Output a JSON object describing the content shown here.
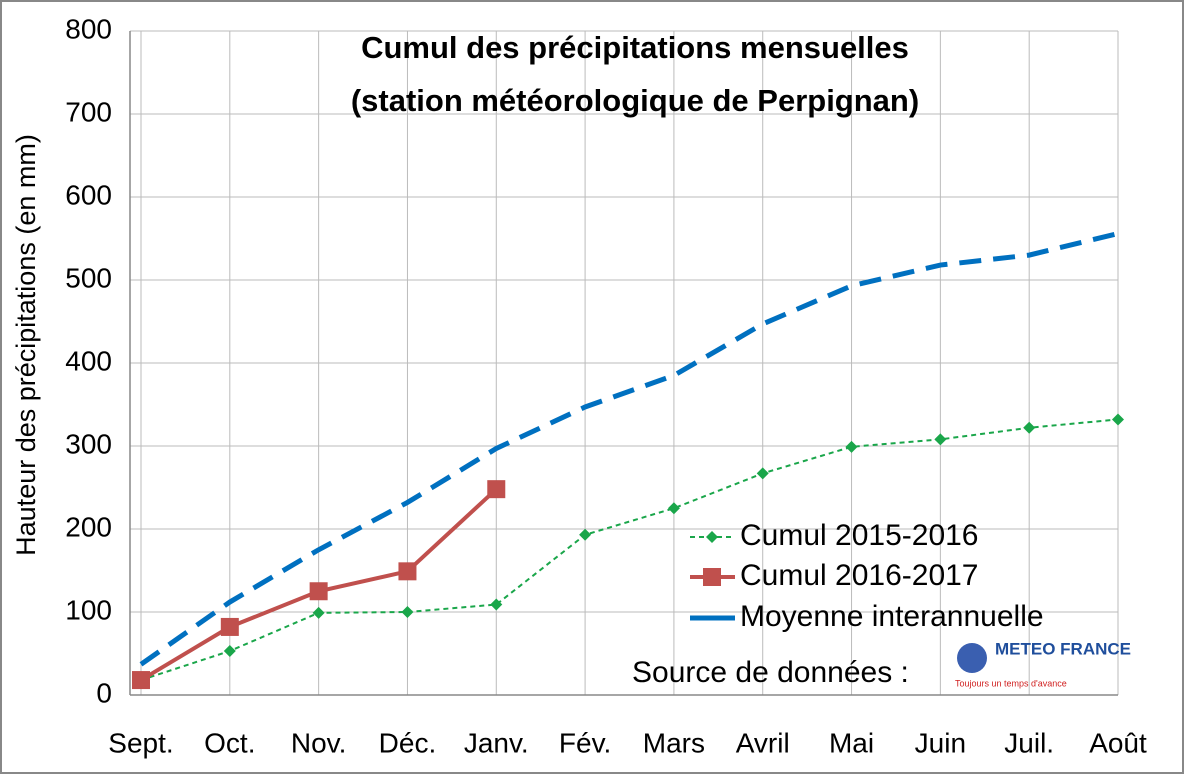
{
  "chart_data": {
    "type": "line",
    "title": "Cumul des précipitations mensuelles",
    "subtitle": "(station météorologique de Perpignan)",
    "y_label": "Hauteur des précipitations (en mm)",
    "categories": [
      "Sept.",
      "Oct.",
      "Nov.",
      "Déc.",
      "Janv.",
      "Fév.",
      "Mars",
      "Avril",
      "Mai",
      "Juin",
      "Juil.",
      "Août"
    ],
    "series": [
      {
        "name": "Cumul 2015-2016",
        "color": "#1aa64a",
        "values": [
          18,
          53,
          99,
          100,
          109,
          193,
          225,
          267,
          299,
          308,
          322,
          332
        ]
      },
      {
        "name": "Cumul 2016-2017",
        "color": "#c0504d",
        "values": [
          18,
          82,
          125,
          149,
          248,
          null,
          null,
          null,
          null,
          null,
          null,
          null
        ]
      },
      {
        "name": "Moyenne interannuelle",
        "color": "#0070c0",
        "values": [
          37,
          112,
          175,
          232,
          297,
          347,
          385,
          447,
          493,
          518,
          530,
          556
        ]
      }
    ],
    "ylim": [
      0,
      800
    ],
    "yticks": [
      0,
      100,
      200,
      300,
      400,
      500,
      600,
      700,
      800
    ],
    "grid": true,
    "source_label": "Source de données :",
    "logo": {
      "name": "METEO FRANCE",
      "tagline": "Toujours un temps d'avance"
    }
  }
}
